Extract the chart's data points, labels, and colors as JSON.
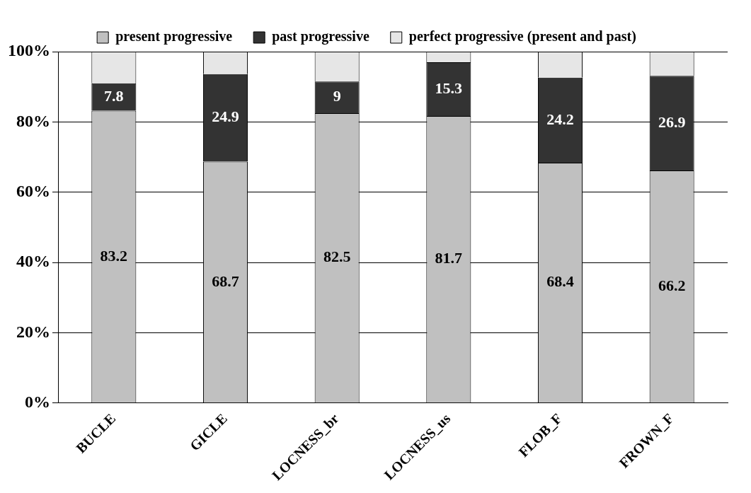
{
  "chart_data": {
    "type": "bar",
    "stacked": true,
    "categories": [
      "BUCLE",
      "GICLE",
      "LOCNESS_br",
      "LOCNESS_us",
      "FLOB_F",
      "FROWN_F"
    ],
    "series": [
      {
        "name": "present progressive",
        "color": "#c0c0c0",
        "values": [
          83.2,
          68.7,
          82.5,
          81.7,
          68.4,
          66.2
        ],
        "value_labels": [
          "83.2",
          "68.7",
          "82.5",
          "81.7",
          "68.4",
          "66.2"
        ]
      },
      {
        "name": "past progressive",
        "color": "#333333",
        "values": [
          7.8,
          24.9,
          9,
          15.3,
          24.2,
          26.9
        ],
        "value_labels": [
          "7.8",
          "24.9",
          "9",
          "15.3",
          "24.2",
          "26.9"
        ]
      },
      {
        "name": "perfect progressive (present and past)",
        "color": "#e6e6e6",
        "values": [
          9,
          6.4,
          8.5,
          3,
          7.4,
          6.9
        ]
      }
    ],
    "ylim": [
      0,
      100
    ],
    "yticks": [
      {
        "value": 0,
        "label": "0%"
      },
      {
        "value": 20,
        "label": "20%"
      },
      {
        "value": 40,
        "label": "40%"
      },
      {
        "value": 60,
        "label": "60%"
      },
      {
        "value": 80,
        "label": "80%"
      },
      {
        "value": 100,
        "label": "100%"
      }
    ],
    "grid": "y",
    "legend": "top"
  }
}
